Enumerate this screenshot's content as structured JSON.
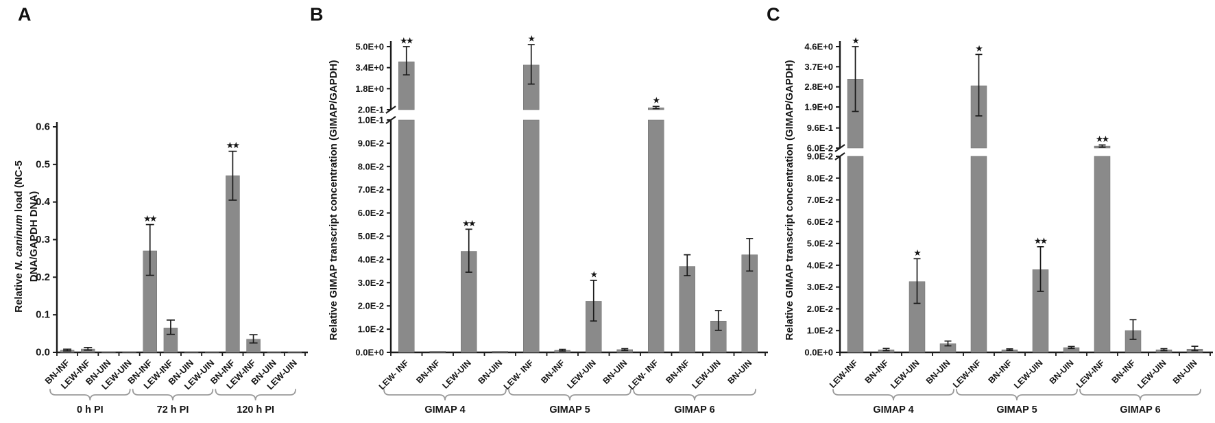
{
  "figure": {
    "background": "#ffffff",
    "bar_color": "#8a8a8a",
    "bar_edge_color": "#6f6f6f",
    "axis_color": "#1a1a1a",
    "text_color": "#141414",
    "bracket_color": "#9a9a9a",
    "error_bar_color": "#1a1a1a"
  },
  "chart_data": [
    {
      "panel_label": "A",
      "type": "bar",
      "grid": false,
      "legend": null,
      "ylabel": "Relative N. caninum load (NC-5 DNA/GAPDH DNA)",
      "ylabel_lines": [
        [
          {
            "t": "Relative ",
            "i": false
          },
          {
            "t": "N. caninum",
            "i": true
          },
          {
            "t": " load (NC-5",
            "i": false
          }
        ],
        [
          {
            "t": "DNA/GAPDH DNA)",
            "i": false
          }
        ]
      ],
      "axis": {
        "broken": false,
        "ylim": [
          0,
          0.6
        ],
        "yticks": [
          {
            "v": 0.0,
            "label": "0.0"
          },
          {
            "v": 0.1,
            "label": "0.1"
          },
          {
            "v": 0.2,
            "label": "0.2"
          },
          {
            "v": 0.3,
            "label": "0.3"
          },
          {
            "v": 0.4,
            "label": "0.4"
          },
          {
            "v": 0.5,
            "label": "0.5"
          },
          {
            "v": 0.6,
            "label": "0.6"
          }
        ]
      },
      "groups": [
        {
          "label": "0 h PI",
          "bars": [
            {
              "category": "BN-INF",
              "value": 0.006,
              "err_lo": 0.004,
              "err_hi": 0.0085,
              "sig": ""
            },
            {
              "category": "LEW-INF",
              "value": 0.009,
              "err_lo": 0.006,
              "err_hi": 0.013,
              "sig": ""
            },
            {
              "category": "BN-UIN",
              "value": 0.0005,
              "sig": ""
            },
            {
              "category": "LEW-UIN",
              "value": 0.0005,
              "sig": ""
            }
          ]
        },
        {
          "label": "72 h PI",
          "bars": [
            {
              "category": "BN-INF",
              "value": 0.27,
              "err_lo": 0.205,
              "err_hi": 0.34,
              "sig": "**"
            },
            {
              "category": "LEW-INF",
              "value": 0.065,
              "err_lo": 0.048,
              "err_hi": 0.086,
              "sig": ""
            },
            {
              "category": "BN-UIN",
              "value": 0.0005,
              "sig": ""
            },
            {
              "category": "LEW-UIN",
              "value": 0.0005,
              "sig": ""
            }
          ]
        },
        {
          "label": "120 h PI",
          "bars": [
            {
              "category": "BN-INF",
              "value": 0.47,
              "err_lo": 0.405,
              "err_hi": 0.535,
              "sig": "**"
            },
            {
              "category": "LEW-INF",
              "value": 0.035,
              "err_lo": 0.025,
              "err_hi": 0.047,
              "sig": ""
            },
            {
              "category": "BN-UIN",
              "value": 0.0005,
              "sig": ""
            },
            {
              "category": "LEW-UIN",
              "value": 0.0005,
              "sig": ""
            }
          ]
        }
      ]
    },
    {
      "panel_label": "B",
      "type": "bar",
      "grid": false,
      "legend": null,
      "ylabel": "Relative GIMAP transcript concentration (GIMAP/GAPDH)",
      "ylabel_lines": [
        [
          {
            "t": "Relative GIMAP transcript concentration (GIMAP/GAPDH)",
            "i": false
          }
        ]
      ],
      "axis": {
        "broken": true,
        "lower_range": [
          0,
          0.1
        ],
        "upper_range": [
          0.2,
          5.0
        ],
        "lower_ticks": [
          {
            "v": 0.0,
            "label": "0.0E+0"
          },
          {
            "v": 0.01,
            "label": "1.0E-2"
          },
          {
            "v": 0.02,
            "label": "2.0E-2"
          },
          {
            "v": 0.03,
            "label": "3.0E-2"
          },
          {
            "v": 0.04,
            "label": "4.0E-2"
          },
          {
            "v": 0.05,
            "label": "5.0E-2"
          },
          {
            "v": 0.06,
            "label": "6.0E-2"
          },
          {
            "v": 0.07,
            "label": "7.0E-2"
          },
          {
            "v": 0.08,
            "label": "8.0E-2"
          },
          {
            "v": 0.09,
            "label": "9.0E-2"
          },
          {
            "v": 0.1,
            "label": "1.0E-1"
          }
        ],
        "upper_ticks": [
          {
            "v": 0.2,
            "label": "2.0E-1"
          },
          {
            "v": 1.8,
            "label": "1.8E+0"
          },
          {
            "v": 3.4,
            "label": "3.4E+0"
          },
          {
            "v": 5.0,
            "label": "5.0E+0"
          }
        ]
      },
      "groups": [
        {
          "label": "GIMAP 4",
          "bars": [
            {
              "category": "LEW- INF",
              "value": 3.85,
              "err_lo": 2.85,
              "err_hi": 5.0,
              "sig": "**"
            },
            {
              "category": "BN-INF",
              "value": 0.0005,
              "sig": ""
            },
            {
              "category": "LEW-UIN",
              "value": 0.0435,
              "err_lo": 0.0345,
              "err_hi": 0.053,
              "sig": "**"
            },
            {
              "category": "BN-UIN",
              "value": 0.0005,
              "sig": ""
            }
          ]
        },
        {
          "label": "GIMAP 5",
          "bars": [
            {
              "category": "LEW- INF",
              "value": 3.6,
              "err_lo": 2.15,
              "err_hi": 5.15,
              "sig": "*"
            },
            {
              "category": "BN-INF",
              "value": 0.0009,
              "err_lo": 0.0006,
              "err_hi": 0.0013,
              "sig": ""
            },
            {
              "category": "LEW-UIN",
              "value": 0.022,
              "err_lo": 0.0135,
              "err_hi": 0.031,
              "sig": "*"
            },
            {
              "category": "BN-UIN",
              "value": 0.0012,
              "err_lo": 0.0008,
              "err_hi": 0.0016,
              "sig": ""
            }
          ]
        },
        {
          "label": "GIMAP 6",
          "bars": [
            {
              "category": "LEW- INF",
              "value": 0.35,
              "err_lo": 0.28,
              "err_hi": 0.45,
              "sig": "*"
            },
            {
              "category": "BN-INF",
              "value": 0.037,
              "err_lo": 0.033,
              "err_hi": 0.042,
              "sig": ""
            },
            {
              "category": "LEW-UIN",
              "value": 0.0135,
              "err_lo": 0.0095,
              "err_hi": 0.018,
              "sig": ""
            },
            {
              "category": "BN-UIN",
              "value": 0.042,
              "err_lo": 0.035,
              "err_hi": 0.049,
              "sig": ""
            }
          ]
        }
      ]
    },
    {
      "panel_label": "C",
      "type": "bar",
      "grid": false,
      "legend": null,
      "ylabel": "Relative GIMAP transcript concentration (GIMAP/GAPDH)",
      "ylabel_lines": [
        [
          {
            "t": "Relative GIMAP transcript concentration (GIMAP/GAPDH)",
            "i": false
          }
        ]
      ],
      "axis": {
        "broken": true,
        "lower_range": [
          0,
          0.09
        ],
        "upper_range": [
          0.06,
          4.6
        ],
        "lower_ticks": [
          {
            "v": 0.0,
            "label": "0.0E+0"
          },
          {
            "v": 0.01,
            "label": "1.0E-2"
          },
          {
            "v": 0.02,
            "label": "2.0E-2"
          },
          {
            "v": 0.03,
            "label": "3.0E-2"
          },
          {
            "v": 0.04,
            "label": "4.0E-2"
          },
          {
            "v": 0.05,
            "label": "5.0E-2"
          },
          {
            "v": 0.06,
            "label": "6.0E-2"
          },
          {
            "v": 0.07,
            "label": "7.0E-2"
          },
          {
            "v": 0.08,
            "label": "8.0E-2"
          },
          {
            "v": 0.09,
            "label": "9.0E-2"
          }
        ],
        "upper_ticks": [
          {
            "v": 0.06,
            "label": "6.0E-2"
          },
          {
            "v": 0.96,
            "label": "9.6E-1"
          },
          {
            "v": 1.9,
            "label": "1.9E+0"
          },
          {
            "v": 2.8,
            "label": "2.8E+0"
          },
          {
            "v": 3.7,
            "label": "3.7E+0"
          },
          {
            "v": 4.6,
            "label": "4.6E+0"
          }
        ]
      },
      "groups": [
        {
          "label": "GIMAP 4",
          "bars": [
            {
              "category": "LEW-INF",
              "value": 3.15,
              "err_lo": 1.7,
              "err_hi": 4.6,
              "sig": "*"
            },
            {
              "category": "BN-INF",
              "value": 0.0012,
              "err_lo": 0.0008,
              "err_hi": 0.0018,
              "sig": ""
            },
            {
              "category": "LEW-UIN",
              "value": 0.0325,
              "err_lo": 0.0225,
              "err_hi": 0.043,
              "sig": "*"
            },
            {
              "category": "BN-UIN",
              "value": 0.004,
              "err_lo": 0.003,
              "err_hi": 0.0052,
              "sig": ""
            }
          ]
        },
        {
          "label": "GIMAP 5",
          "bars": [
            {
              "category": "LEW-INF",
              "value": 2.85,
              "err_lo": 1.5,
              "err_hi": 4.25,
              "sig": "*"
            },
            {
              "category": "BN-INF",
              "value": 0.0012,
              "err_lo": 0.0009,
              "err_hi": 0.0016,
              "sig": ""
            },
            {
              "category": "LEW-UIN",
              "value": 0.038,
              "err_lo": 0.028,
              "err_hi": 0.0485,
              "sig": "**"
            },
            {
              "category": "BN-UIN",
              "value": 0.0022,
              "err_lo": 0.0018,
              "err_hi": 0.0027,
              "sig": ""
            }
          ]
        },
        {
          "label": "GIMAP 6",
          "bars": [
            {
              "category": "LEW-INF",
              "value": 0.15,
              "err_lo": 0.1,
              "err_hi": 0.2,
              "sig": "**"
            },
            {
              "category": "BN-INF",
              "value": 0.01,
              "err_lo": 0.006,
              "err_hi": 0.015,
              "sig": ""
            },
            {
              "category": "LEW-UIN",
              "value": 0.0012,
              "err_lo": 0.0008,
              "err_hi": 0.0017,
              "sig": ""
            },
            {
              "category": "BN-UIN",
              "value": 0.0015,
              "err_lo": 0.0008,
              "err_hi": 0.0028,
              "sig": ""
            }
          ]
        }
      ]
    }
  ]
}
